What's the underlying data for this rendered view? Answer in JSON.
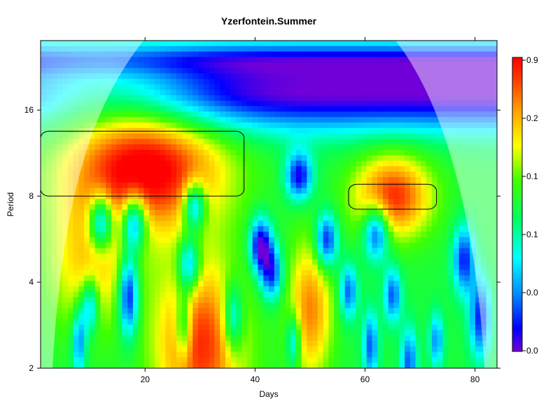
{
  "chart_data": {
    "type": "heatmap",
    "title": "Yzerfontein.Summer",
    "xlabel": "Days",
    "ylabel": "Period",
    "x_ticks": [
      20,
      40,
      60,
      80
    ],
    "y_ticks": [
      2,
      4,
      8,
      16
    ],
    "y_scale": "log2",
    "xlim": [
      1,
      84
    ],
    "ylim": [
      2,
      28
    ],
    "colorbar": {
      "tick_labels": [
        "0.0",
        "0.0",
        "0.1",
        "0.1",
        "0.2",
        "0.9"
      ],
      "colors": [
        "#6a00d8",
        "#0000ff",
        "#0090ff",
        "#00ffff",
        "#00ff40",
        "#40ff00",
        "#ffff00",
        "#ffa000",
        "#ff4000",
        "#ff0000"
      ]
    },
    "regions": [
      {
        "name": "high-power band ~ period 10",
        "x": [
          1,
          38
        ],
        "period": [
          8,
          13
        ],
        "level": 0.95
      },
      {
        "name": "high-power patch",
        "x": [
          57,
          72
        ],
        "period": [
          7.3,
          8.8
        ],
        "level": 0.9
      },
      {
        "name": "low-power band ~ period 17",
        "x": [
          20,
          80
        ],
        "period": [
          15,
          22
        ],
        "level": 0.05
      },
      {
        "name": "short-period high power",
        "x": [
          18,
          40
        ],
        "period": [
          2,
          3
        ],
        "level": 0.92
      }
    ],
    "significance_contours": [
      {
        "x_range": [
          1,
          38
        ],
        "period_range": [
          8,
          13.5
        ]
      },
      {
        "x_range": [
          57,
          73
        ],
        "period_range": [
          7.2,
          8.8
        ]
      }
    ]
  }
}
